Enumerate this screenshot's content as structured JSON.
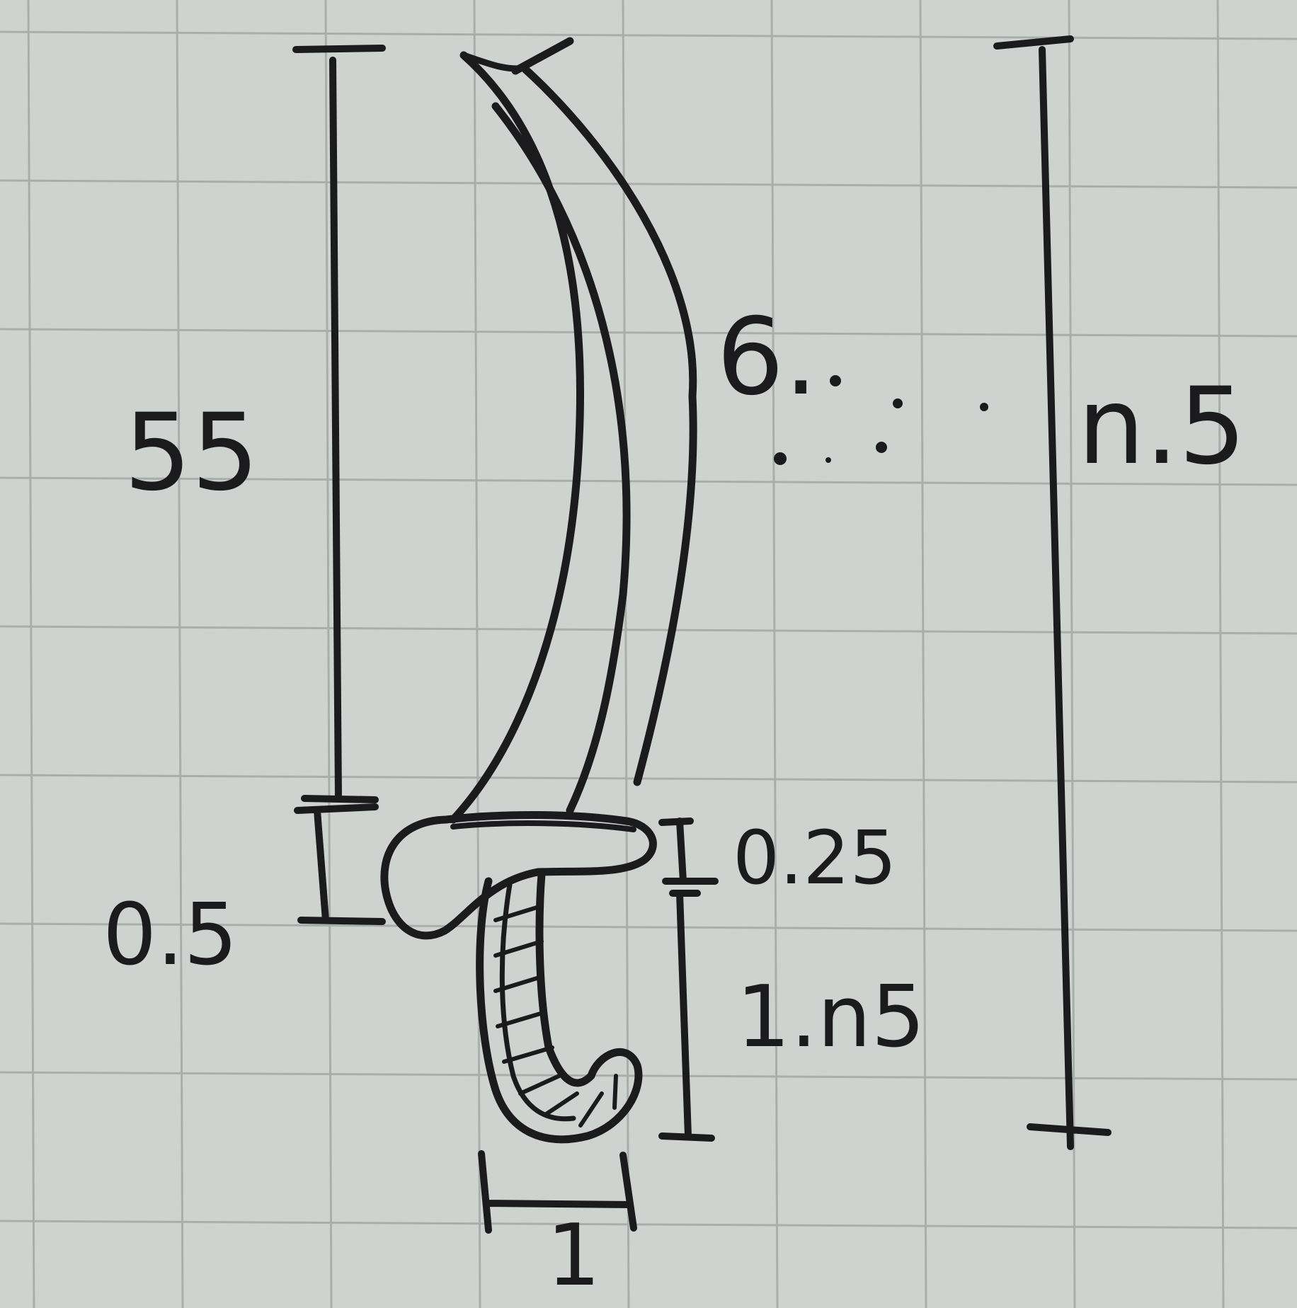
{
  "dimensions": {
    "blade_height": "55",
    "blade_length": "6.",
    "total_length": "n.5",
    "guard_thickness": "0.5",
    "guard_lip": "0.25",
    "grip_length": "1.n5",
    "grip_width": "1"
  },
  "colors": {
    "paper": "#cfd3d0",
    "grid": "#a9aeab",
    "ink": "#1b1b1d"
  }
}
